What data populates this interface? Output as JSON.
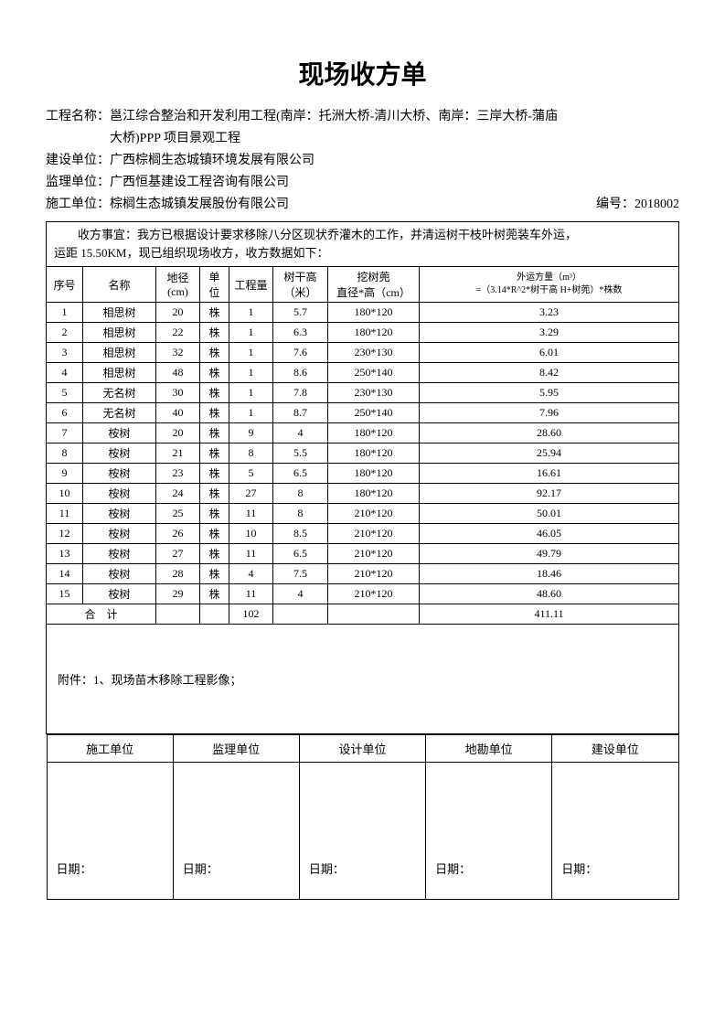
{
  "title": "现场收方单",
  "info": {
    "project_label": "工程名称：",
    "project_value_line1": "邕江综合整治和开发利用工程(南岸：托洲大桥-清川大桥、南岸：三岸大桥-蒲庙",
    "project_value_line2": "大桥)PPP 项目景观工程",
    "build_label": "建设单位：",
    "build_value": "广西棕榈生态城镇环境发展有限公司",
    "supervise_label": "监理单位：",
    "supervise_value": "广西恒基建设工程咨询有限公司",
    "construct_label": "施工单位：",
    "construct_value": "棕榈生态城镇发展股份有限公司",
    "serial_label": "编号：",
    "serial_value": "2018002"
  },
  "desc": {
    "line1": "　　收方事宜：我方已根据设计要求移除八分区现状乔灌木的工作，并清运树干枝叶树蔸装车外运，",
    "line2": "运距 15.50KM，现已组织现场收方，收方数据如下："
  },
  "headers": {
    "seq": "序号",
    "name": "名称",
    "diam": "地径\n(cm)",
    "unit": "单\n位",
    "qty": "工程量",
    "height": "树干高\n（米）",
    "dig": "挖树蔸\n直径*高（cm）",
    "vol_line1": "外运方量（m³）",
    "vol_line2": "=（3.14*R^2*树干高 H+树蔸）*株数"
  },
  "rows": [
    {
      "seq": "1",
      "name": "相思树",
      "diam": "20",
      "unit": "株",
      "qty": "1",
      "height": "5.7",
      "dig": "180*120",
      "vol": "3.23"
    },
    {
      "seq": "2",
      "name": "相思树",
      "diam": "22",
      "unit": "株",
      "qty": "1",
      "height": "6.3",
      "dig": "180*120",
      "vol": "3.29"
    },
    {
      "seq": "3",
      "name": "相思树",
      "diam": "32",
      "unit": "株",
      "qty": "1",
      "height": "7.6",
      "dig": "230*130",
      "vol": "6.01"
    },
    {
      "seq": "4",
      "name": "相思树",
      "diam": "48",
      "unit": "株",
      "qty": "1",
      "height": "8.6",
      "dig": "250*140",
      "vol": "8.42"
    },
    {
      "seq": "5",
      "name": "无名树",
      "diam": "30",
      "unit": "株",
      "qty": "1",
      "height": "7.8",
      "dig": "230*130",
      "vol": "5.95"
    },
    {
      "seq": "6",
      "name": "无名树",
      "diam": "40",
      "unit": "株",
      "qty": "1",
      "height": "8.7",
      "dig": "250*140",
      "vol": "7.96"
    },
    {
      "seq": "7",
      "name": "桉树",
      "diam": "20",
      "unit": "株",
      "qty": "9",
      "height": "4",
      "dig": "180*120",
      "vol": "28.60"
    },
    {
      "seq": "8",
      "name": "桉树",
      "diam": "21",
      "unit": "株",
      "qty": "8",
      "height": "5.5",
      "dig": "180*120",
      "vol": "25.94"
    },
    {
      "seq": "9",
      "name": "桉树",
      "diam": "23",
      "unit": "株",
      "qty": "5",
      "height": "6.5",
      "dig": "180*120",
      "vol": "16.61"
    },
    {
      "seq": "10",
      "name": "桉树",
      "diam": "24",
      "unit": "株",
      "qty": "27",
      "height": "8",
      "dig": "180*120",
      "vol": "92.17"
    },
    {
      "seq": "11",
      "name": "桉树",
      "diam": "25",
      "unit": "株",
      "qty": "11",
      "height": "8",
      "dig": "210*120",
      "vol": "50.01"
    },
    {
      "seq": "12",
      "name": "桉树",
      "diam": "26",
      "unit": "株",
      "qty": "10",
      "height": "8.5",
      "dig": "210*120",
      "vol": "46.05"
    },
    {
      "seq": "13",
      "name": "桉树",
      "diam": "27",
      "unit": "株",
      "qty": "11",
      "height": "6.5",
      "dig": "210*120",
      "vol": "49.79"
    },
    {
      "seq": "14",
      "name": "桉树",
      "diam": "28",
      "unit": "株",
      "qty": "4",
      "height": "7.5",
      "dig": "210*120",
      "vol": "18.46"
    },
    {
      "seq": "15",
      "name": "桉树",
      "diam": "29",
      "unit": "株",
      "qty": "11",
      "height": "4",
      "dig": "210*120",
      "vol": "48.60"
    }
  ],
  "total": {
    "label": "合　计",
    "qty": "102",
    "vol": "411.11"
  },
  "attachment": "附件：1、现场苗木移除工程影像；",
  "sign": {
    "construct": "施工单位",
    "supervise": "监理单位",
    "design": "设计单位",
    "survey": "地勘单位",
    "build": "建设单位",
    "date": "日期："
  },
  "styling": {
    "page_bg": "#ffffff",
    "text_color": "#000000",
    "border_color": "#000000",
    "title_fontsize": 28,
    "body_fontsize": 14,
    "table_fontsize": 12,
    "small_fontsize": 10,
    "font_family_title": "SimHei",
    "font_family_body": "SimSun"
  }
}
